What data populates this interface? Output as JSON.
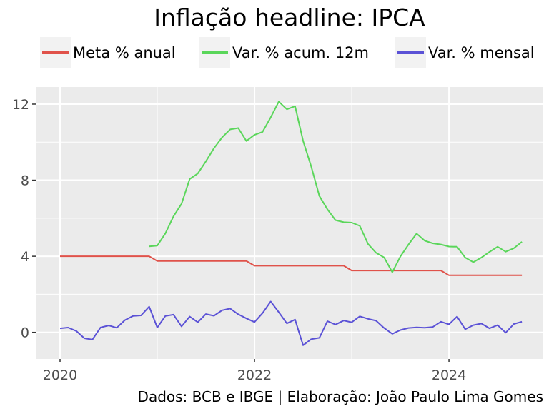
{
  "chart_data": {
    "type": "line",
    "title": "Inflação headline: IPCA",
    "caption": "Dados: BCB e IBGE | Elaboração: João Paulo Lima Gomes",
    "xlabel": "",
    "ylabel": "",
    "x_ticks": [
      "2020",
      "2022",
      "2024"
    ],
    "y_ticks": [
      "0",
      "4",
      "8",
      "12"
    ],
    "xlim": [
      2019.75,
      2024.97
    ],
    "ylim": [
      -1.4,
      12.9
    ],
    "grid": true,
    "legend_position": "top",
    "series": [
      {
        "name": "Meta % anual",
        "color": "#e0524a",
        "x": [
          2020.0,
          2020.917,
          2021.0,
          2021.917,
          2022.0,
          2022.917,
          2023.0,
          2023.917,
          2024.0,
          2024.75
        ],
        "y": [
          4.0,
          4.0,
          3.75,
          3.75,
          3.5,
          3.5,
          3.25,
          3.25,
          3.0,
          3.0
        ]
      },
      {
        "name": "Var. % acum. 12m",
        "color": "#5ad65a",
        "x": [
          2020.917,
          2021.0,
          2021.083,
          2021.167,
          2021.25,
          2021.333,
          2021.417,
          2021.5,
          2021.583,
          2021.667,
          2021.75,
          2021.833,
          2021.917,
          2022.0,
          2022.083,
          2022.167,
          2022.25,
          2022.333,
          2022.417,
          2022.5,
          2022.583,
          2022.667,
          2022.75,
          2022.833,
          2022.917,
          2023.0,
          2023.083,
          2023.167,
          2023.25,
          2023.333,
          2023.417,
          2023.5,
          2023.583,
          2023.667,
          2023.75,
          2023.833,
          2023.917,
          2024.0,
          2024.083,
          2024.167,
          2024.25,
          2024.333,
          2024.417,
          2024.5,
          2024.583,
          2024.667,
          2024.75
        ],
        "y": [
          4.52,
          4.56,
          5.2,
          6.1,
          6.76,
          8.06,
          8.35,
          8.99,
          9.68,
          10.25,
          10.67,
          10.74,
          10.06,
          10.38,
          10.54,
          11.3,
          12.13,
          11.73,
          11.89,
          10.07,
          8.73,
          7.17,
          6.47,
          5.9,
          5.79,
          5.77,
          5.6,
          4.65,
          4.18,
          3.94,
          3.16,
          3.99,
          4.61,
          5.19,
          4.82,
          4.68,
          4.62,
          4.51,
          4.5,
          3.93,
          3.69,
          3.93,
          4.23,
          4.5,
          4.24,
          4.42,
          4.76
        ]
      },
      {
        "name": "Var. % mensal",
        "color": "#5b52d6",
        "x": [
          2020.0,
          2020.083,
          2020.167,
          2020.25,
          2020.333,
          2020.417,
          2020.5,
          2020.583,
          2020.667,
          2020.75,
          2020.833,
          2020.917,
          2021.0,
          2021.083,
          2021.167,
          2021.25,
          2021.333,
          2021.417,
          2021.5,
          2021.583,
          2021.667,
          2021.75,
          2021.833,
          2021.917,
          2022.0,
          2022.083,
          2022.167,
          2022.25,
          2022.333,
          2022.417,
          2022.5,
          2022.583,
          2022.667,
          2022.75,
          2022.833,
          2022.917,
          2023.0,
          2023.083,
          2023.167,
          2023.25,
          2023.333,
          2023.417,
          2023.5,
          2023.583,
          2023.667,
          2023.75,
          2023.833,
          2023.917,
          2024.0,
          2024.083,
          2024.167,
          2024.25,
          2024.333,
          2024.417,
          2024.5,
          2024.583,
          2024.667,
          2024.75
        ],
        "y": [
          0.21,
          0.25,
          0.07,
          -0.31,
          -0.38,
          0.26,
          0.36,
          0.24,
          0.64,
          0.86,
          0.89,
          1.35,
          0.25,
          0.86,
          0.93,
          0.31,
          0.83,
          0.53,
          0.96,
          0.87,
          1.16,
          1.25,
          0.95,
          0.73,
          0.54,
          1.01,
          1.62,
          1.06,
          0.47,
          0.67,
          -0.68,
          -0.36,
          -0.29,
          0.59,
          0.41,
          0.62,
          0.53,
          0.84,
          0.71,
          0.61,
          0.23,
          -0.08,
          0.12,
          0.23,
          0.26,
          0.24,
          0.28,
          0.56,
          0.42,
          0.83,
          0.16,
          0.38,
          0.46,
          0.21,
          0.38,
          -0.02,
          0.44,
          0.56
        ]
      }
    ]
  }
}
